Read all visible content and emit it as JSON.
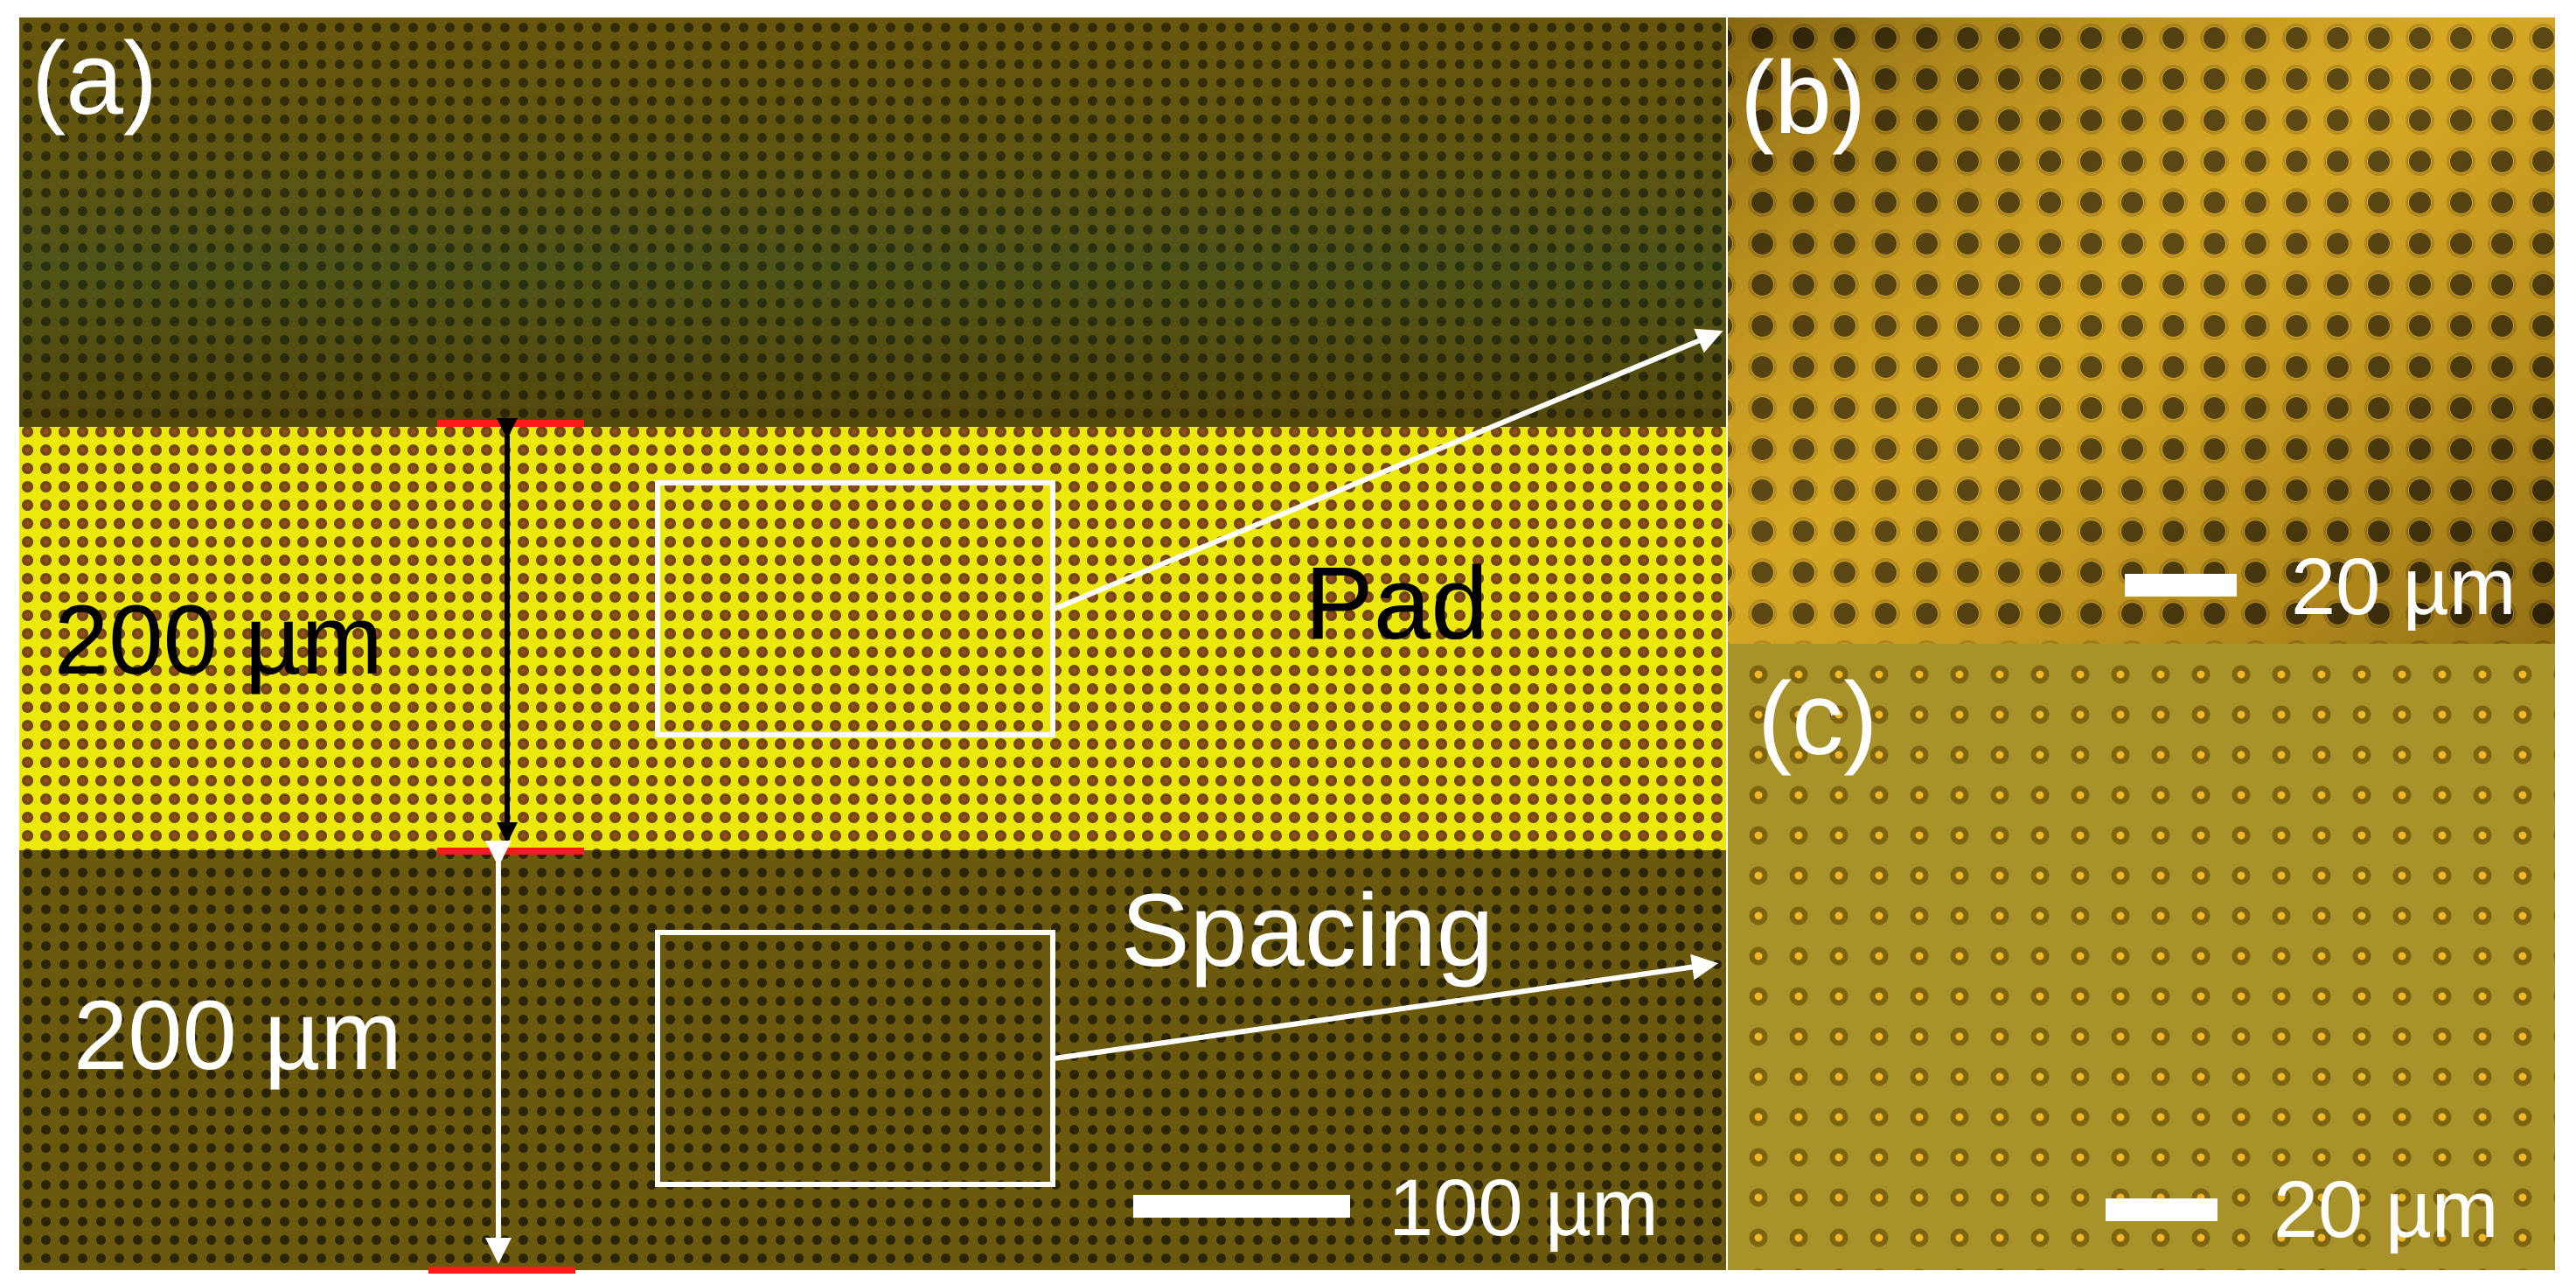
{
  "figure": {
    "panel_a": {
      "label": "(a)",
      "pad_label": "Pad",
      "spacing_label": "Spacing",
      "pad_width": "200 µm",
      "spacing_width": "200 µm",
      "scale_bar": "100 µm"
    },
    "panel_b": {
      "label": "(b)",
      "scale_bar": "20 µm"
    },
    "panel_c": {
      "label": "(c)",
      "scale_bar": "20 µm"
    }
  },
  "colors": {
    "spacing_region": "#5e4c08",
    "pad_region": "#e8e40a",
    "panel_b_background": "#c69a1a",
    "panel_c_background": "#a89226",
    "marker_red": "#ff1a1a",
    "annotation_white": "#ffffff",
    "annotation_black": "#000000"
  }
}
